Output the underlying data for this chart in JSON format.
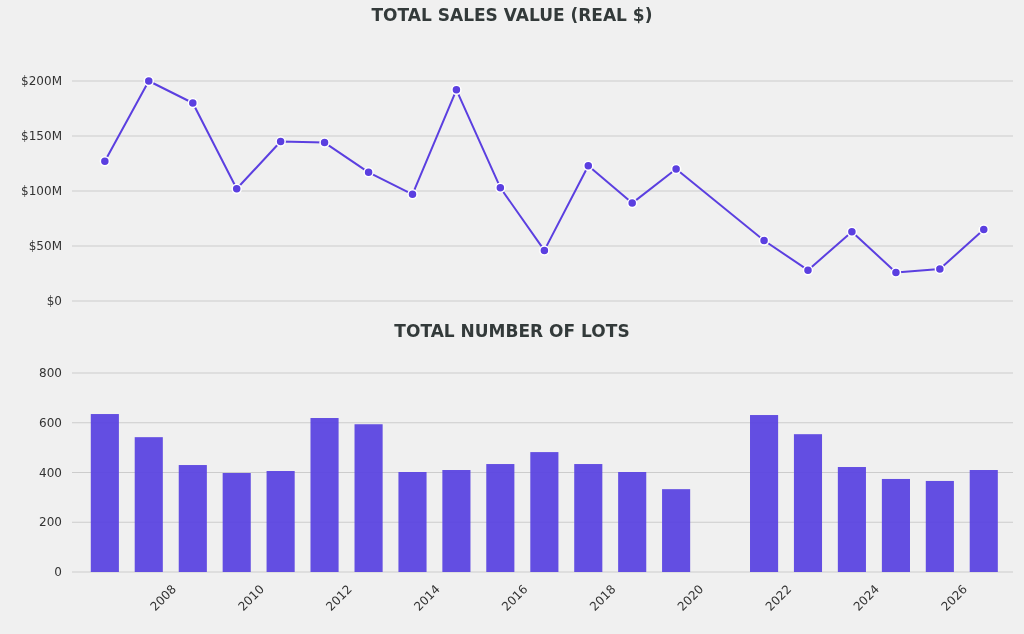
{
  "chart_data": [
    {
      "type": "line",
      "title": "TOTAL SALES VALUE (REAL $)",
      "x": [
        "2006-07",
        "2007-07",
        "2008-07",
        "2009-07",
        "2010-07",
        "2011-07",
        "2012-07",
        "2013-07",
        "2014-07",
        "2015-07",
        "2016-07",
        "2017-07",
        "2018-07",
        "2019-07",
        "2021-07",
        "2022-07",
        "2023-07",
        "2024-07",
        "2025-07",
        "2026-07"
      ],
      "series": [
        {
          "color": "#5b3fe0",
          "values": [
            127,
            200,
            180,
            102,
            145,
            144,
            117,
            97,
            192,
            103,
            46,
            123,
            89,
            120,
            55,
            28,
            63,
            26,
            29,
            65
          ]
        }
      ],
      "xlim": [
        "2005-10",
        "2027-03"
      ],
      "ylim": [
        0,
        200
      ],
      "yticks": [
        {
          "value": 0,
          "label": "$0"
        },
        {
          "value": 50,
          "label": "$50M"
        },
        {
          "value": 100,
          "label": "$100M"
        },
        {
          "value": 150,
          "label": "$150M"
        },
        {
          "value": 200,
          "label": "$200M"
        }
      ],
      "grid": "y",
      "marker": "circle",
      "line_style": "solid",
      "tick_labels": "y"
    },
    {
      "type": "bar",
      "title": "TOTAL NUMBER OF LOTS",
      "x": [
        "2006-07",
        "2007-07",
        "2008-07",
        "2009-07",
        "2010-07",
        "2011-07",
        "2012-07",
        "2013-07",
        "2014-07",
        "2015-07",
        "2016-07",
        "2017-07",
        "2018-07",
        "2019-07",
        "2021-07",
        "2022-07",
        "2023-07",
        "2024-07",
        "2025-07",
        "2026-07"
      ],
      "series": [
        {
          "color": "#5b45e0",
          "values": [
            635,
            542,
            430,
            398,
            406,
            619,
            594,
            402,
            410,
            434,
            482,
            434,
            402,
            333,
            631,
            554,
            422,
            374,
            366,
            410
          ]
        }
      ],
      "xlim": [
        "2005-10",
        "2027-03"
      ],
      "xticks": [
        {
          "value": "2008-01",
          "label": "2008"
        },
        {
          "value": "2010-01",
          "label": "2010"
        },
        {
          "value": "2012-01",
          "label": "2012"
        },
        {
          "value": "2014-01",
          "label": "2014"
        },
        {
          "value": "2016-01",
          "label": "2016"
        },
        {
          "value": "2018-01",
          "label": "2018"
        },
        {
          "value": "2020-01",
          "label": "2020"
        },
        {
          "value": "2022-01",
          "label": "2022"
        },
        {
          "value": "2024-01",
          "label": "2024"
        },
        {
          "value": "2026-01",
          "label": "2026"
        }
      ],
      "ylim": [
        0,
        800
      ],
      "yticks": [
        0,
        200,
        400,
        600,
        800
      ],
      "grid": "y"
    }
  ]
}
